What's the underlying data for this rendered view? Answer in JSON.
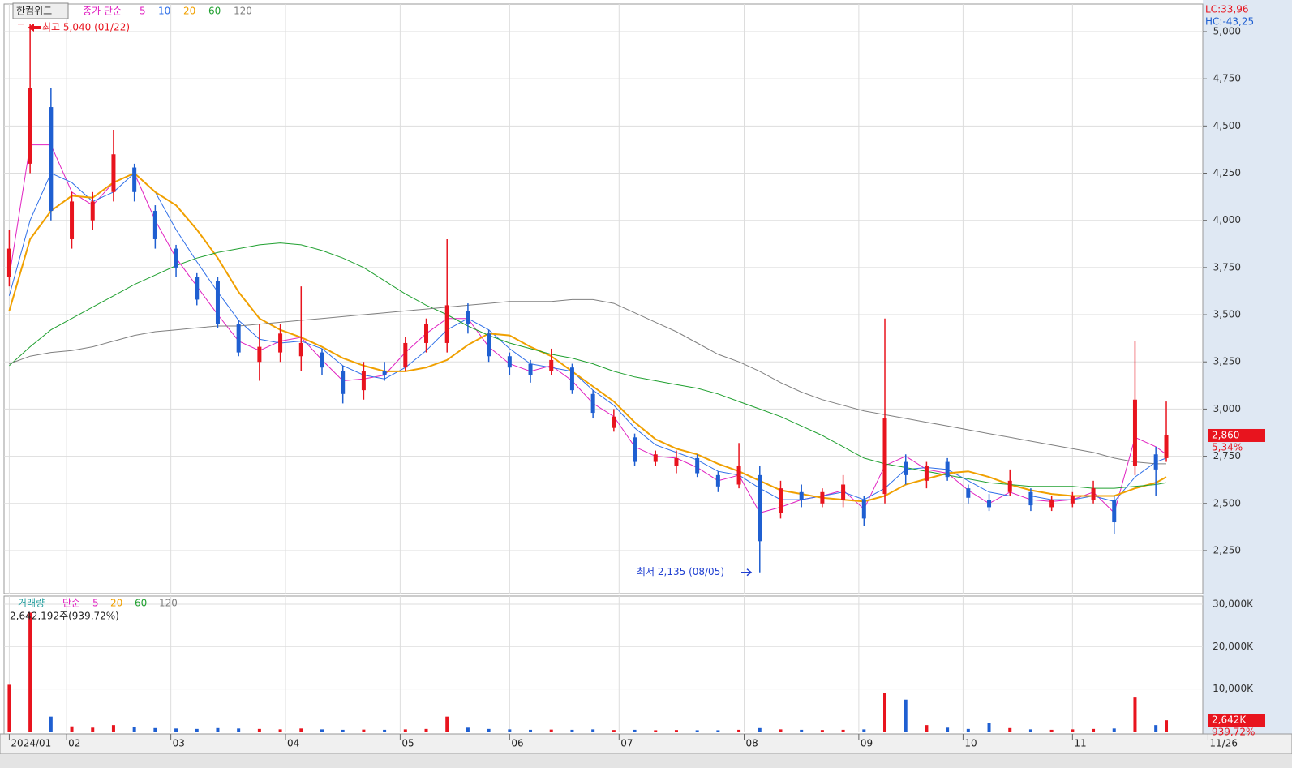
{
  "chart_data": {
    "type": "candlestick",
    "title": "한컴위드",
    "ma_label": "종가 단순",
    "x": [
      0,
      4,
      8,
      12,
      16,
      20,
      24,
      28,
      32,
      36,
      40,
      44,
      48,
      52,
      56,
      60,
      64,
      68,
      72,
      76,
      80,
      84,
      88,
      92,
      96,
      100,
      104,
      108,
      112,
      116,
      120,
      124,
      128,
      132,
      136,
      140,
      144,
      148,
      152,
      156,
      160,
      164,
      168,
      172,
      176,
      180,
      184,
      188,
      192,
      196,
      200,
      204,
      208,
      212,
      216,
      220,
      222
    ],
    "open": [
      3700,
      4300,
      4600,
      3900,
      4000,
      4150,
      4280,
      4050,
      3850,
      3700,
      3680,
      3450,
      3250,
      3300,
      3280,
      3300,
      3200,
      3100,
      3200,
      3220,
      3350,
      3350,
      3520,
      3400,
      3280,
      3240,
      3200,
      3220,
      3080,
      2900,
      2850,
      2720,
      2700,
      2740,
      2650,
      2600,
      2650,
      2450,
      2560,
      2500,
      2520,
      2520,
      2550,
      2720,
      2620,
      2720,
      2580,
      2520,
      2560,
      2560,
      2480,
      2500,
      2520,
      2520,
      2700,
      2760,
      2740
    ],
    "high": [
      3950,
      5040,
      4700,
      4150,
      4150,
      4480,
      4300,
      4080,
      3870,
      3720,
      3700,
      3470,
      3450,
      3450,
      3650,
      3320,
      3230,
      3250,
      3250,
      3380,
      3480,
      3900,
      3560,
      3420,
      3300,
      3260,
      3320,
      3240,
      3100,
      3000,
      2870,
      2780,
      2780,
      2760,
      2670,
      2820,
      2700,
      2620,
      2600,
      2580,
      2650,
      2540,
      3480,
      2760,
      2720,
      2740,
      2600,
      2550,
      2680,
      2580,
      2540,
      2560,
      2620,
      2540,
      3360,
      2800,
      3040
    ],
    "low": [
      3650,
      4250,
      4000,
      3850,
      3950,
      4100,
      4100,
      3850,
      3700,
      3550,
      3430,
      3280,
      3150,
      3250,
      3200,
      3180,
      3030,
      3050,
      3150,
      3200,
      3300,
      3300,
      3400,
      3250,
      3180,
      3140,
      3180,
      3080,
      2950,
      2880,
      2700,
      2700,
      2660,
      2640,
      2560,
      2580,
      2135,
      2420,
      2480,
      2480,
      2480,
      2380,
      2500,
      2600,
      2580,
      2620,
      2500,
      2460,
      2540,
      2460,
      2460,
      2480,
      2500,
      2340,
      2650,
      2540,
      2720
    ],
    "close": [
      3850,
      4700,
      4050,
      4100,
      4100,
      4350,
      4150,
      3900,
      3750,
      3580,
      3450,
      3300,
      3330,
      3400,
      3350,
      3220,
      3080,
      3200,
      3180,
      3350,
      3450,
      3550,
      3450,
      3280,
      3220,
      3180,
      3260,
      3100,
      2980,
      2960,
      2720,
      2760,
      2740,
      2660,
      2590,
      2700,
      2300,
      2580,
      2520,
      2560,
      2600,
      2420,
      2950,
      2650,
      2700,
      2640,
      2530,
      2480,
      2620,
      2490,
      2520,
      2540,
      2580,
      2400,
      3050,
      2680,
      2860
    ],
    "up_color": "#e8141e",
    "down_color": "#1f5fd1",
    "xlim": [
      -1,
      229
    ],
    "xticks": [
      {
        "value": 0,
        "label": "2024/01"
      },
      {
        "value": 11,
        "label": "02"
      },
      {
        "value": 31,
        "label": "03"
      },
      {
        "value": 53,
        "label": "04"
      },
      {
        "value": 75,
        "label": "05"
      },
      {
        "value": 96,
        "label": "06"
      },
      {
        "value": 117,
        "label": "07"
      },
      {
        "value": 141,
        "label": "08"
      },
      {
        "value": 163,
        "label": "09"
      },
      {
        "value": 183,
        "label": "10"
      },
      {
        "value": 204,
        "label": "11"
      },
      {
        "value": 230,
        "label": "11/26"
      }
    ],
    "ylim": [
      2022,
      5146
    ],
    "yticks": [
      {
        "value": 2250,
        "label": "2,250"
      },
      {
        "value": 2500,
        "label": "2,500"
      },
      {
        "value": 2750,
        "label": "2,750"
      },
      {
        "value": 3000,
        "label": "3,000"
      },
      {
        "value": 3250,
        "label": "3,250"
      },
      {
        "value": 3500,
        "label": "3,500"
      },
      {
        "value": 3750,
        "label": "3,750"
      },
      {
        "value": 4000,
        "label": "4,000"
      },
      {
        "value": 4250,
        "label": "4,250"
      },
      {
        "value": 4500,
        "label": "4,500"
      },
      {
        "value": 4750,
        "label": "4,750"
      },
      {
        "value": 5000,
        "label": "5,000"
      }
    ],
    "grid": true,
    "series": [
      {
        "name": "5",
        "color": "#e020c0",
        "values": [
          3700,
          4400,
          4400,
          4150,
          4080,
          4200,
          4250,
          4000,
          3800,
          3650,
          3500,
          3360,
          3310,
          3360,
          3380,
          3260,
          3150,
          3160,
          3180,
          3300,
          3400,
          3480,
          3480,
          3330,
          3240,
          3200,
          3230,
          3150,
          3030,
          2960,
          2800,
          2750,
          2740,
          2690,
          2620,
          2650,
          2450,
          2480,
          2520,
          2540,
          2570,
          2470,
          2700,
          2750,
          2680,
          2660,
          2570,
          2500,
          2560,
          2520,
          2510,
          2520,
          2560,
          2450,
          2850,
          2800,
          2760
        ]
      },
      {
        "name": "10",
        "color": "#3070e8",
        "values": [
          3600,
          4000,
          4250,
          4200,
          4100,
          4150,
          4250,
          4150,
          3950,
          3780,
          3620,
          3470,
          3370,
          3350,
          3360,
          3320,
          3230,
          3180,
          3160,
          3220,
          3310,
          3420,
          3480,
          3420,
          3320,
          3240,
          3220,
          3200,
          3100,
          3020,
          2900,
          2810,
          2770,
          2730,
          2670,
          2650,
          2580,
          2520,
          2520,
          2540,
          2560,
          2520,
          2580,
          2680,
          2690,
          2680,
          2620,
          2560,
          2540,
          2540,
          2520,
          2520,
          2540,
          2510,
          2640,
          2720,
          2740
        ]
      },
      {
        "name": "20",
        "color": "#f0a000",
        "values": [
          3520,
          3900,
          4050,
          4130,
          4120,
          4200,
          4250,
          4150,
          4080,
          3950,
          3800,
          3620,
          3480,
          3420,
          3380,
          3330,
          3270,
          3230,
          3200,
          3200,
          3220,
          3260,
          3340,
          3400,
          3390,
          3330,
          3280,
          3200,
          3120,
          3040,
          2930,
          2840,
          2790,
          2760,
          2710,
          2670,
          2620,
          2570,
          2550,
          2530,
          2520,
          2510,
          2540,
          2600,
          2630,
          2660,
          2670,
          2640,
          2600,
          2570,
          2550,
          2540,
          2540,
          2540,
          2580,
          2610,
          2640
        ]
      },
      {
        "name": "60",
        "color": "#20a030",
        "values": [
          3230,
          3330,
          3420,
          3480,
          3540,
          3600,
          3660,
          3710,
          3760,
          3800,
          3830,
          3850,
          3870,
          3880,
          3870,
          3840,
          3800,
          3750,
          3680,
          3610,
          3550,
          3500,
          3440,
          3390,
          3350,
          3320,
          3290,
          3270,
          3240,
          3200,
          3170,
          3150,
          3130,
          3110,
          3080,
          3040,
          3000,
          2960,
          2910,
          2860,
          2800,
          2740,
          2710,
          2690,
          2670,
          2650,
          2630,
          2610,
          2600,
          2590,
          2590,
          2590,
          2580,
          2580,
          2590,
          2600,
          2610
        ]
      },
      {
        "name": "120",
        "color": "#808080",
        "values": [
          3240,
          3280,
          3300,
          3310,
          3330,
          3360,
          3390,
          3410,
          3420,
          3430,
          3440,
          3440,
          3450,
          3460,
          3470,
          3480,
          3490,
          3500,
          3510,
          3520,
          3530,
          3540,
          3550,
          3560,
          3570,
          3570,
          3570,
          3580,
          3580,
          3560,
          3510,
          3460,
          3410,
          3350,
          3290,
          3250,
          3200,
          3140,
          3090,
          3050,
          3020,
          2990,
          2970,
          2950,
          2930,
          2910,
          2890,
          2870,
          2850,
          2830,
          2810,
          2790,
          2770,
          2740,
          2720,
          2710,
          2710
        ]
      }
    ],
    "annotations": {
      "high": {
        "value": 5040,
        "label": "최고 5,040 (01/22)"
      },
      "low": {
        "value": 2135,
        "label": "최저 2,135 (08/05)"
      }
    },
    "indicators": [
      "LC:33,96",
      "HC:-43,25"
    ],
    "last": {
      "value": 2860,
      "label": "2,860",
      "change": "5,34%"
    },
    "volume": {
      "label": "거래량",
      "ma_label": "단순",
      "ma": [
        {
          "name": "5",
          "color": "#e020c0"
        },
        {
          "name": "20",
          "color": "#f0a000"
        },
        {
          "name": "60",
          "color": "#20a030"
        },
        {
          "name": "120",
          "color": "#808080"
        }
      ],
      "info": "2,642,192주(939,72%)",
      "values": [
        11000,
        28000,
        3500,
        1200,
        900,
        1500,
        1000,
        800,
        700,
        600,
        800,
        700,
        600,
        500,
        700,
        500,
        400,
        450,
        400,
        500,
        600,
        3500,
        900,
        600,
        500,
        400,
        450,
        400,
        500,
        350,
        400,
        300,
        350,
        300,
        300,
        400,
        800,
        500,
        400,
        350,
        400,
        500,
        9000,
        7500,
        1500,
        900,
        600,
        2000,
        800,
        500,
        400,
        500,
        600,
        700,
        8000,
        1500,
        2642
      ],
      "ylim": [
        0,
        31900
      ],
      "yticks": [
        {
          "value": 10000,
          "label": "10,000K"
        },
        {
          "value": 20000,
          "label": "20,000K"
        },
        {
          "value": 30000,
          "label": "30,000K"
        }
      ],
      "last": {
        "value": 2642,
        "label": "2,642K",
        "change": "939,72%"
      }
    }
  }
}
